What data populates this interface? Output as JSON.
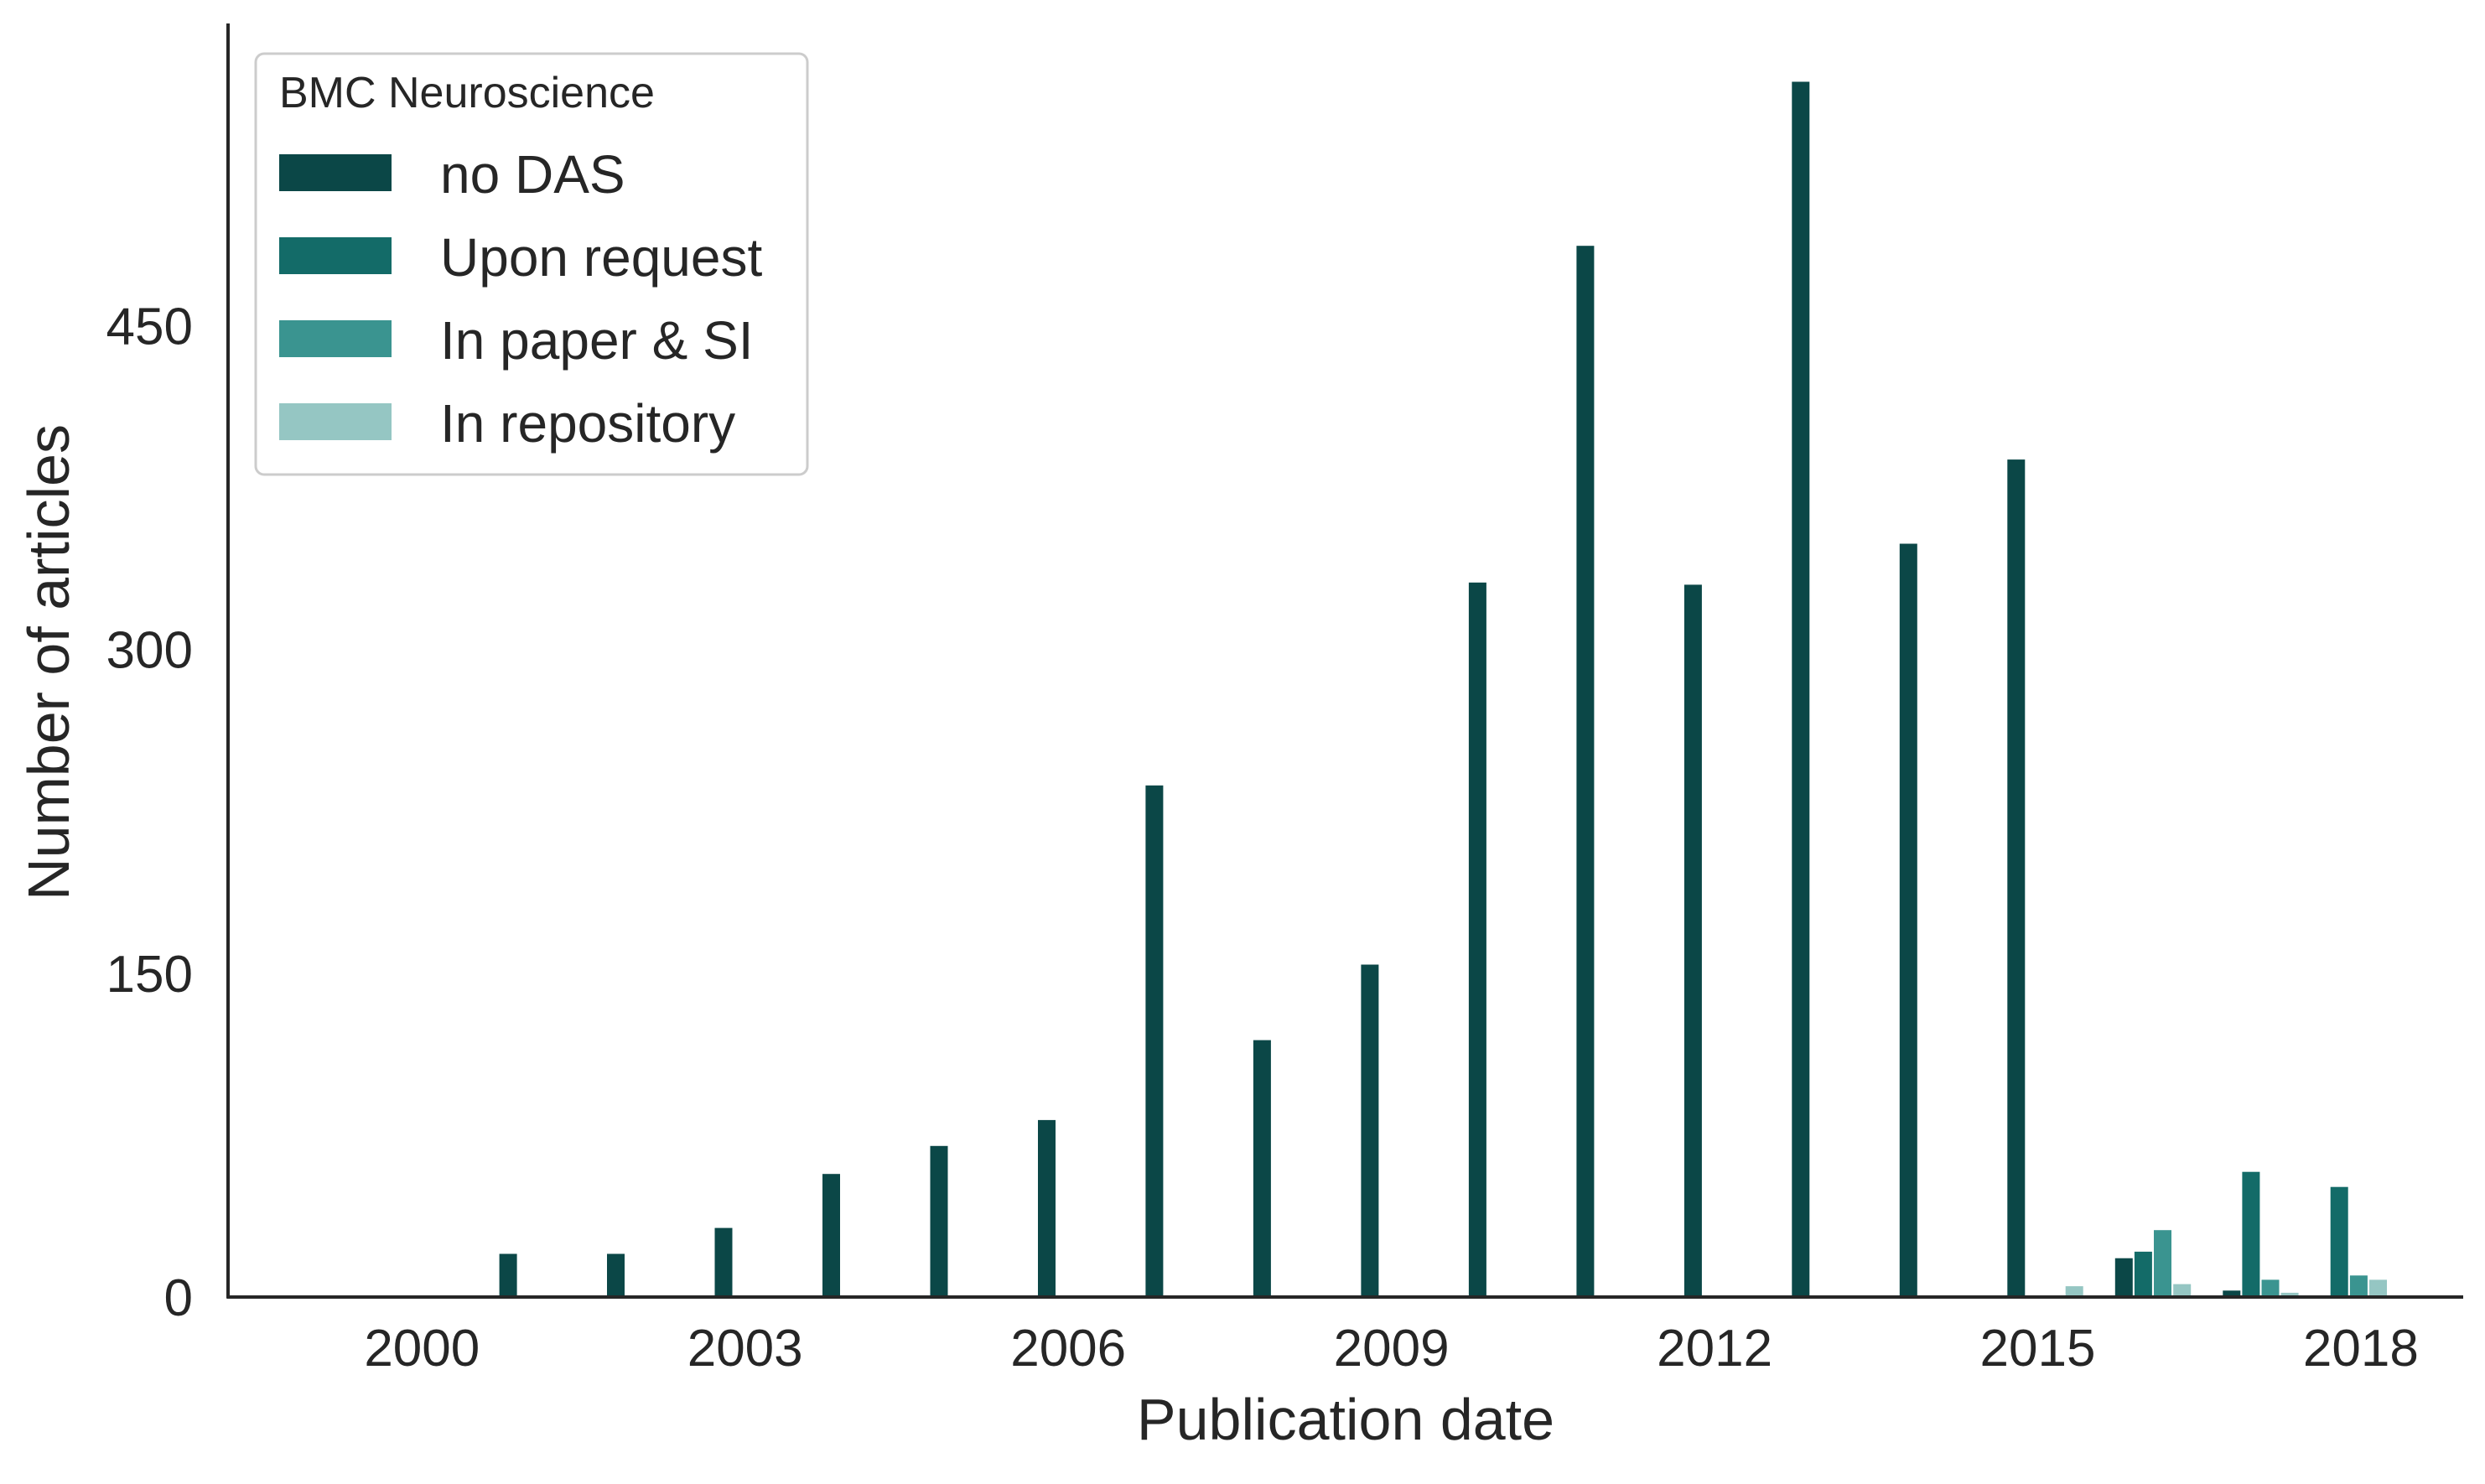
{
  "chart_data": {
    "type": "bar",
    "xlabel": "Publication date",
    "ylabel": "Number of articles",
    "ylim": [
      0,
      590
    ],
    "xlim": [
      1998.2,
      2018.95
    ],
    "y_ticks": [
      0,
      150,
      300,
      450
    ],
    "x_ticks": [
      2000,
      2003,
      2006,
      2009,
      2012,
      2015,
      2018
    ],
    "grid": false,
    "legend": {
      "title": "BMC Neuroscience",
      "placement": "top-left"
    },
    "series": [
      {
        "name": "no DAS",
        "color": "#0b4747",
        "points": [
          {
            "x": 2000.8,
            "y": 20
          },
          {
            "x": 2001.8,
            "y": 20
          },
          {
            "x": 2002.8,
            "y": 32
          },
          {
            "x": 2003.8,
            "y": 57
          },
          {
            "x": 2004.8,
            "y": 70
          },
          {
            "x": 2005.8,
            "y": 82
          },
          {
            "x": 2006.8,
            "y": 237
          },
          {
            "x": 2007.8,
            "y": 119
          },
          {
            "x": 2008.8,
            "y": 154
          },
          {
            "x": 2009.8,
            "y": 331
          },
          {
            "x": 2010.8,
            "y": 487
          },
          {
            "x": 2011.8,
            "y": 330
          },
          {
            "x": 2012.8,
            "y": 563
          },
          {
            "x": 2013.8,
            "y": 349
          },
          {
            "x": 2014.8,
            "y": 388
          },
          {
            "x": 2015.8,
            "y": 18
          },
          {
            "x": 2016.8,
            "y": 3
          }
        ]
      },
      {
        "name": "Upon request",
        "color": "#136b68",
        "points": [
          {
            "x": 2015.98,
            "y": 21
          },
          {
            "x": 2016.98,
            "y": 58
          },
          {
            "x": 2017.8,
            "y": 51
          }
        ]
      },
      {
        "name": "In paper & SI",
        "color": "#3a9490",
        "points": [
          {
            "x": 2016.16,
            "y": 31
          },
          {
            "x": 2017.16,
            "y": 8
          },
          {
            "x": 2017.98,
            "y": 10
          }
        ]
      },
      {
        "name": "In repository",
        "color": "#95c6c3",
        "points": [
          {
            "x": 2015.34,
            "y": 5
          },
          {
            "x": 2016.34,
            "y": 6
          },
          {
            "x": 2017.34,
            "y": 2
          },
          {
            "x": 2018.16,
            "y": 8
          }
        ]
      }
    ]
  }
}
